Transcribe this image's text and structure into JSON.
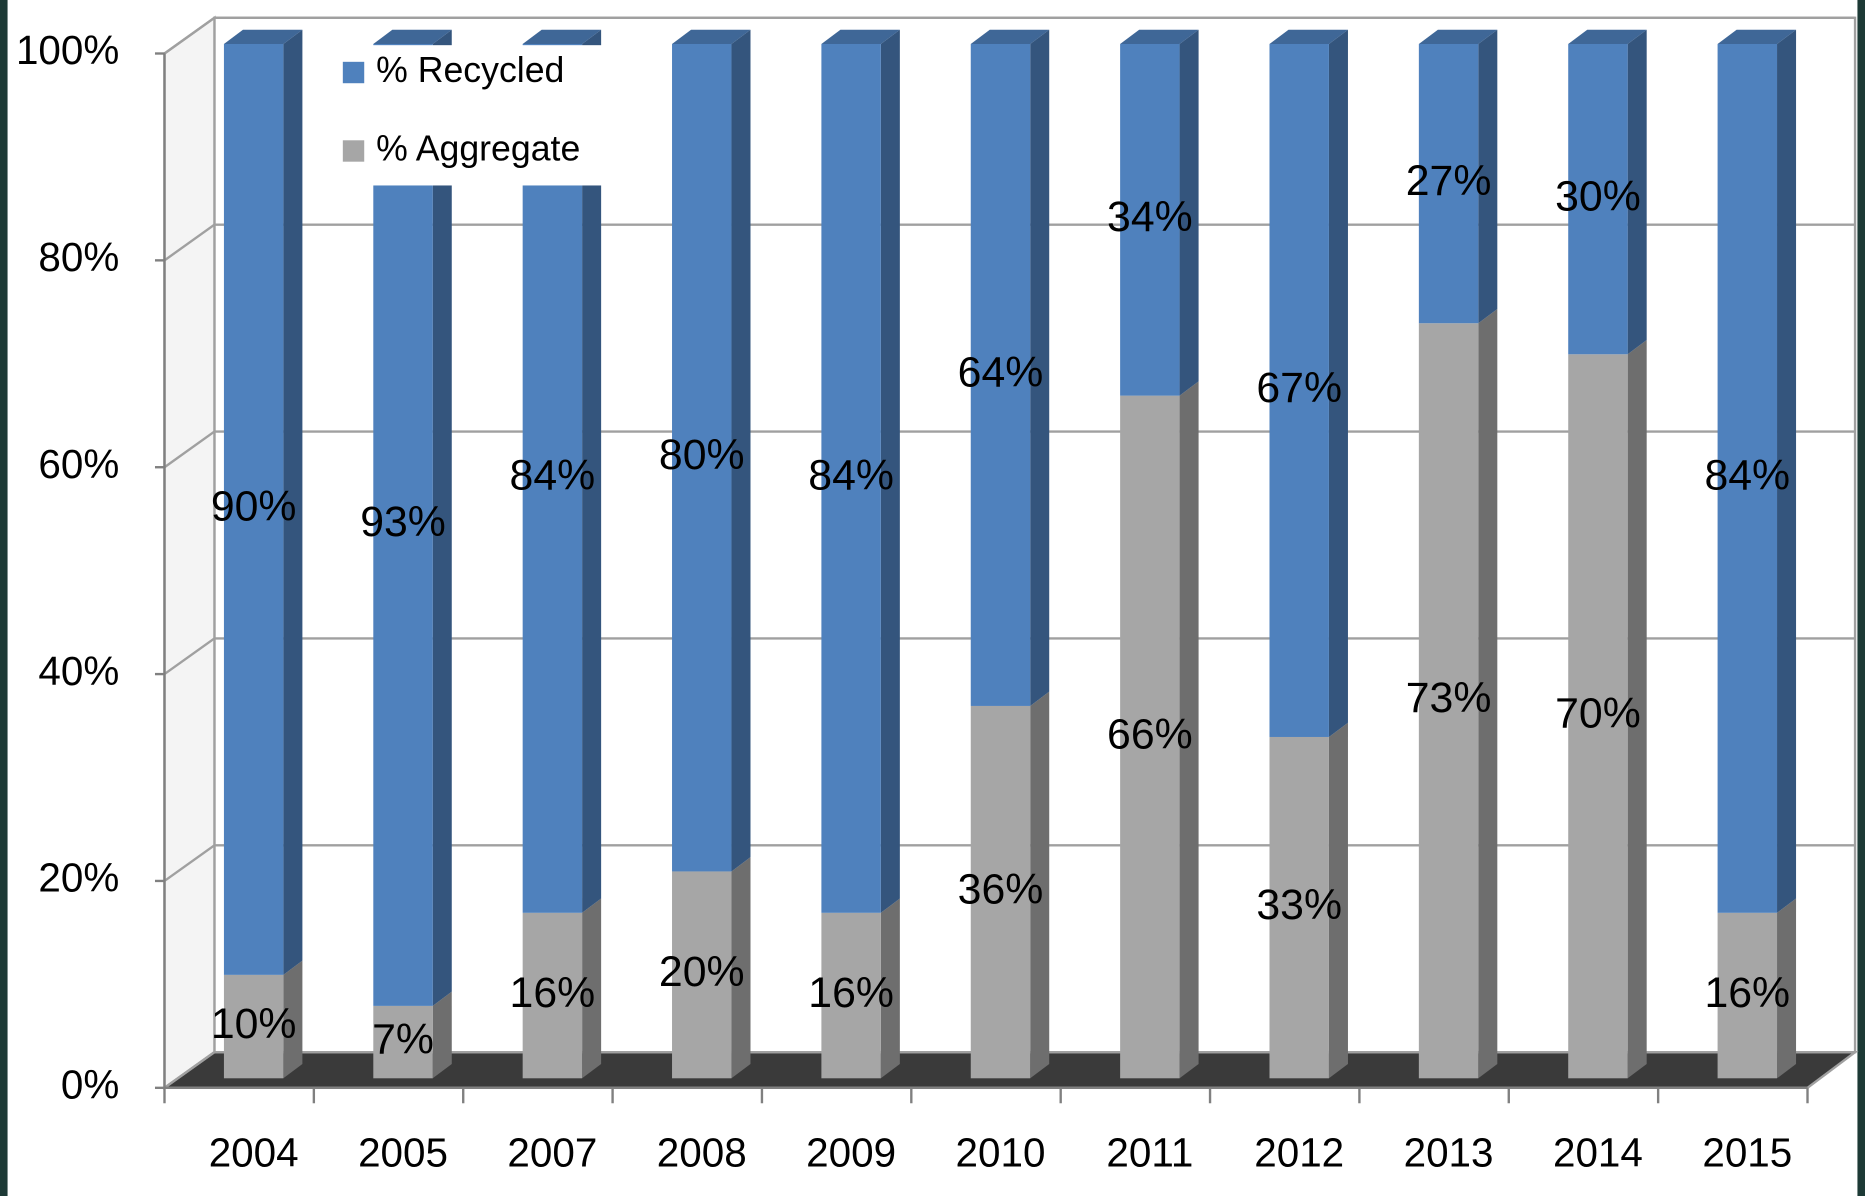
{
  "chart_data": {
    "type": "bar",
    "stacked": true,
    "categories": [
      "2004",
      "2005",
      "2007",
      "2008",
      "2009",
      "2010",
      "2011",
      "2012",
      "2013",
      "2014",
      "2015"
    ],
    "series": [
      {
        "name": "% Recycled",
        "color": "#4f81bd",
        "values": [
          90,
          93,
          84,
          80,
          84,
          64,
          34,
          67,
          27,
          30,
          84
        ],
        "value_labels": [
          "90%",
          "93%",
          "84%",
          "80%",
          "84%",
          "64%",
          "34%",
          "67%",
          "27%",
          "30%",
          "84%"
        ]
      },
      {
        "name": "% Aggregate",
        "color": "#a6a6a6",
        "values": [
          10,
          7,
          16,
          20,
          16,
          36,
          66,
          33,
          73,
          70,
          16
        ],
        "value_labels": [
          "10%",
          "7%",
          "16%",
          "20%",
          "16%",
          "36%",
          "66%",
          "33%",
          "73%",
          "70%",
          "16%"
        ]
      }
    ],
    "ylim": [
      0,
      100
    ],
    "yticks": [
      {
        "value": 0,
        "label": "0%"
      },
      {
        "value": 20,
        "label": "20%"
      },
      {
        "value": 40,
        "label": "40%"
      },
      {
        "value": 60,
        "label": "60%"
      },
      {
        "value": 80,
        "label": "80%"
      },
      {
        "value": 100,
        "label": "100%"
      }
    ],
    "grid": true,
    "legend": "top-left"
  }
}
